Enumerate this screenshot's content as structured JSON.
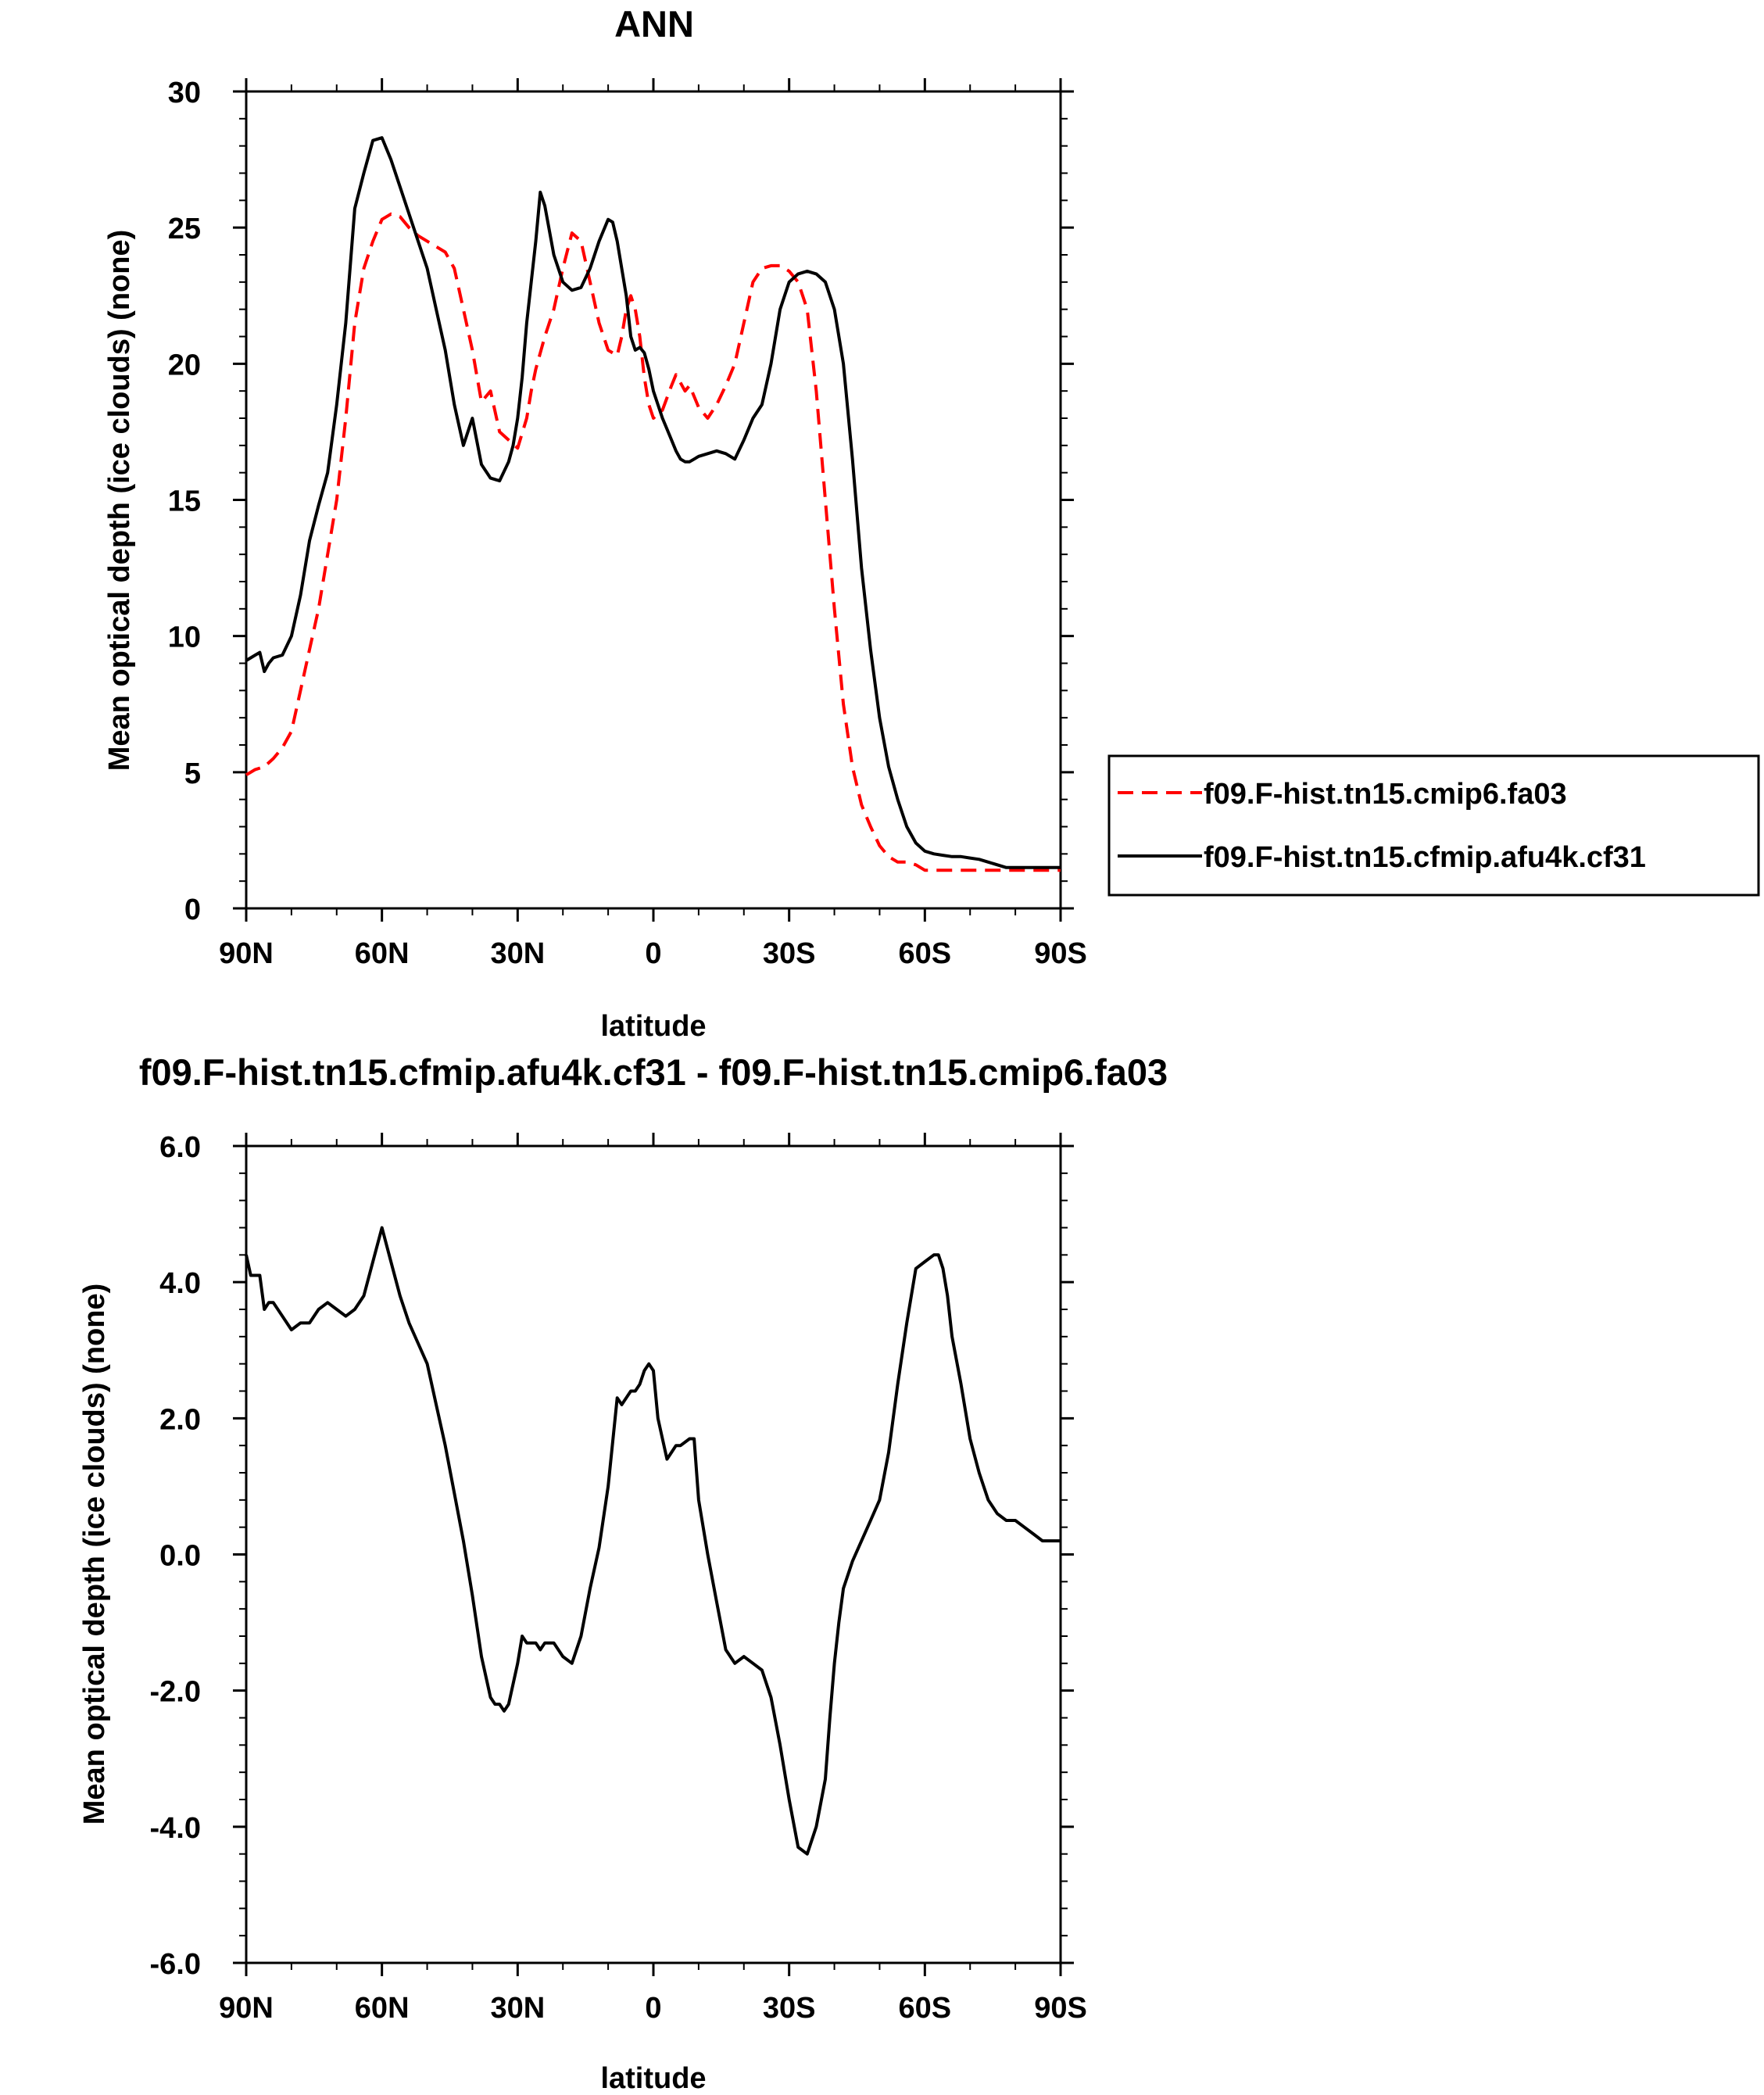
{
  "chart_data": [
    {
      "type": "line",
      "title": "ANN",
      "xlabel": "latitude",
      "ylabel": "Mean optical depth (ice clouds) (none)",
      "xlim": [
        90,
        -90
      ],
      "ylim": [
        0,
        30
      ],
      "x_ticks": [
        90,
        60,
        30,
        0,
        -30,
        -60,
        -90
      ],
      "x_tick_labels": [
        "90N",
        "60N",
        "30N",
        "0",
        "30S",
        "60S",
        "90S"
      ],
      "y_ticks": [
        0,
        5,
        10,
        15,
        20,
        25,
        30
      ],
      "y_tick_labels": [
        "0",
        "5",
        "10",
        "15",
        "20",
        "25",
        "30"
      ],
      "grid": false,
      "legend": "right",
      "series": [
        {
          "name": "f09.F-hist.tn15.cmip6.fa03",
          "color": "#ff0000",
          "dash": "dashed",
          "x": [
            90,
            88,
            86,
            84,
            82,
            80,
            78,
            76,
            74,
            72,
            70,
            68,
            66,
            64,
            62,
            60,
            58,
            56,
            54,
            52,
            50,
            48,
            46,
            44,
            42,
            40,
            38,
            36,
            34,
            32,
            30,
            28,
            27,
            26,
            25,
            24,
            22,
            20,
            18,
            16,
            14,
            12,
            10,
            8,
            7,
            6,
            5,
            4,
            3,
            2,
            1,
            0,
            -2,
            -4,
            -5,
            -6,
            -7,
            -8,
            -9,
            -10,
            -12,
            -14,
            -16,
            -18,
            -20,
            -22,
            -24,
            -26,
            -28,
            -30,
            -32,
            -34,
            -36,
            -38,
            -40,
            -42,
            -44,
            -46,
            -48,
            -50,
            -52,
            -54,
            -56,
            -58,
            -60,
            -62,
            -64,
            -66,
            -68,
            -70,
            -72,
            -74,
            -76,
            -78,
            -80,
            -82,
            -84,
            -86,
            -88,
            -90
          ],
          "y": [
            4.9,
            5.1,
            5.2,
            5.5,
            5.9,
            6.5,
            8.0,
            9.5,
            11.0,
            13.0,
            15.0,
            18.0,
            21.5,
            23.5,
            24.5,
            25.3,
            25.5,
            25.4,
            25.0,
            24.7,
            24.5,
            24.3,
            24.1,
            23.5,
            22.0,
            20.5,
            18.6,
            19.0,
            17.5,
            17.2,
            16.9,
            18.0,
            19.0,
            19.8,
            20.4,
            21.0,
            22.0,
            23.5,
            24.8,
            24.5,
            23.0,
            21.5,
            20.5,
            20.3,
            21.0,
            22.0,
            22.5,
            22.0,
            21.0,
            19.5,
            18.5,
            18.0,
            18.3,
            19.2,
            19.6,
            19.3,
            19.0,
            19.2,
            18.8,
            18.4,
            18.0,
            18.5,
            19.2,
            20.0,
            21.5,
            23.0,
            23.5,
            23.6,
            23.6,
            23.4,
            23.0,
            22.0,
            19.0,
            15.0,
            11.0,
            7.5,
            5.2,
            3.8,
            3.0,
            2.3,
            1.9,
            1.7,
            1.7,
            1.6,
            1.4,
            1.4,
            1.4,
            1.4,
            1.4,
            1.4,
            1.4,
            1.4,
            1.4,
            1.4,
            1.4,
            1.4,
            1.4,
            1.4,
            1.4,
            1.4
          ]
        },
        {
          "name": "f09.F-hist.tn15.cfmip.afu4k.cf31",
          "color": "#000000",
          "dash": "solid",
          "x": [
            90,
            88,
            87,
            86,
            85,
            84,
            82,
            80,
            78,
            76,
            74,
            72,
            70,
            68,
            66,
            64,
            62,
            60,
            58,
            56,
            54,
            52,
            50,
            48,
            46,
            44,
            42,
            40,
            38,
            36,
            34,
            32,
            31,
            30,
            29,
            28,
            27,
            26,
            25,
            24,
            22,
            20,
            18,
            16,
            14,
            12,
            10,
            9,
            8,
            7,
            6,
            5,
            4,
            3,
            2,
            1,
            0,
            -1,
            -2,
            -3,
            -4,
            -5,
            -6,
            -7,
            -8,
            -9,
            -10,
            -12,
            -14,
            -16,
            -18,
            -20,
            -22,
            -24,
            -26,
            -28,
            -30,
            -32,
            -34,
            -36,
            -38,
            -40,
            -42,
            -44,
            -46,
            -48,
            -50,
            -52,
            -54,
            -56,
            -58,
            -60,
            -62,
            -64,
            -66,
            -68,
            -70,
            -72,
            -74,
            -76,
            -78,
            -80,
            -82,
            -84,
            -86,
            -88,
            -90
          ],
          "y": [
            9.1,
            9.3,
            9.4,
            8.7,
            9.0,
            9.2,
            9.3,
            10.0,
            11.5,
            13.5,
            14.8,
            16.0,
            18.5,
            21.5,
            25.7,
            27.0,
            28.2,
            28.3,
            27.5,
            26.5,
            25.5,
            24.5,
            23.5,
            22.0,
            20.5,
            18.5,
            17.0,
            18.0,
            16.3,
            15.8,
            15.7,
            16.4,
            17.0,
            18.0,
            19.5,
            21.5,
            23.0,
            24.5,
            26.3,
            25.8,
            24.0,
            23.0,
            22.7,
            22.8,
            23.5,
            24.5,
            25.3,
            25.2,
            24.5,
            23.5,
            22.5,
            21.0,
            20.5,
            20.6,
            20.4,
            19.8,
            19.0,
            18.5,
            18.0,
            17.6,
            17.2,
            16.8,
            16.5,
            16.4,
            16.4,
            16.5,
            16.6,
            16.7,
            16.8,
            16.7,
            16.5,
            17.2,
            18.0,
            18.5,
            20.0,
            22.0,
            23.0,
            23.3,
            23.4,
            23.3,
            23.0,
            22.0,
            20.0,
            16.5,
            12.5,
            9.5,
            7.0,
            5.2,
            4.0,
            3.0,
            2.4,
            2.1,
            2.0,
            1.95,
            1.9,
            1.9,
            1.85,
            1.8,
            1.7,
            1.6,
            1.5,
            1.5,
            1.5,
            1.5,
            1.5,
            1.5,
            1.5
          ]
        }
      ]
    },
    {
      "type": "line",
      "title": "f09.F-hist.tn15.cfmip.afu4k.cf31 - f09.F-hist.tn15.cmip6.fa03",
      "xlabel": "latitude",
      "ylabel": "Mean optical depth (ice clouds) (none)",
      "xlim": [
        90,
        -90
      ],
      "ylim": [
        -6,
        6
      ],
      "x_ticks": [
        90,
        60,
        30,
        0,
        -30,
        -60,
        -90
      ],
      "x_tick_labels": [
        "90N",
        "60N",
        "30N",
        "0",
        "30S",
        "60S",
        "90S"
      ],
      "y_ticks": [
        -6,
        -4,
        -2,
        0,
        2,
        4,
        6
      ],
      "y_tick_labels": [
        "-6.0",
        "-4.0",
        "-2.0",
        "0.0",
        "2.0",
        "4.0",
        "6.0"
      ],
      "grid": false,
      "series": [
        {
          "name": "",
          "color": "#000000",
          "dash": "solid",
          "x": [
            90,
            89,
            88,
            87,
            86,
            85,
            84,
            82,
            80,
            78,
            76,
            74,
            72,
            70,
            68,
            66,
            64,
            62,
            60,
            58,
            56,
            54,
            52,
            50,
            48,
            46,
            44,
            42,
            40,
            38,
            36,
            35,
            34,
            33,
            32,
            30,
            29,
            28,
            27,
            26,
            25,
            24,
            22,
            20,
            18,
            16,
            14,
            12,
            10,
            8,
            7,
            6,
            5,
            4,
            3,
            2,
            1,
            0,
            -1,
            -2,
            -3,
            -4,
            -5,
            -6,
            -8,
            -9,
            -10,
            -12,
            -14,
            -16,
            -18,
            -20,
            -22,
            -24,
            -26,
            -28,
            -30,
            -32,
            -34,
            -36,
            -38,
            -39,
            -40,
            -41,
            -42,
            -44,
            -46,
            -48,
            -50,
            -52,
            -54,
            -56,
            -58,
            -60,
            -62,
            -63,
            -64,
            -65,
            -66,
            -68,
            -70,
            -72,
            -74,
            -76,
            -78,
            -80,
            -82,
            -84,
            -86,
            -88,
            -90
          ],
          "y": [
            4.4,
            4.1,
            4.1,
            4.1,
            3.6,
            3.7,
            3.7,
            3.5,
            3.3,
            3.4,
            3.4,
            3.6,
            3.7,
            3.6,
            3.5,
            3.6,
            3.8,
            4.3,
            4.8,
            4.3,
            3.8,
            3.4,
            3.1,
            2.8,
            2.2,
            1.6,
            0.9,
            0.2,
            -0.6,
            -1.5,
            -2.1,
            -2.2,
            -2.2,
            -2.3,
            -2.2,
            -1.6,
            -1.2,
            -1.3,
            -1.3,
            -1.3,
            -1.4,
            -1.3,
            -1.3,
            -1.5,
            -1.6,
            -1.2,
            -0.5,
            0.1,
            1.0,
            2.3,
            2.2,
            2.3,
            2.4,
            2.4,
            2.5,
            2.7,
            2.8,
            2.7,
            2.0,
            1.7,
            1.4,
            1.5,
            1.6,
            1.6,
            1.7,
            1.7,
            0.8,
            0.0,
            -0.7,
            -1.4,
            -1.6,
            -1.5,
            -1.6,
            -1.7,
            -2.1,
            -2.8,
            -3.6,
            -4.3,
            -4.4,
            -4.0,
            -3.3,
            -2.4,
            -1.6,
            -1.0,
            -0.5,
            -0.1,
            0.2,
            0.5,
            0.8,
            1.5,
            2.5,
            3.4,
            4.2,
            4.3,
            4.4,
            4.4,
            4.2,
            3.8,
            3.2,
            2.5,
            1.7,
            1.2,
            0.8,
            0.6,
            0.5,
            0.5,
            0.4,
            0.3,
            0.2,
            0.2,
            0.2
          ]
        }
      ]
    }
  ]
}
